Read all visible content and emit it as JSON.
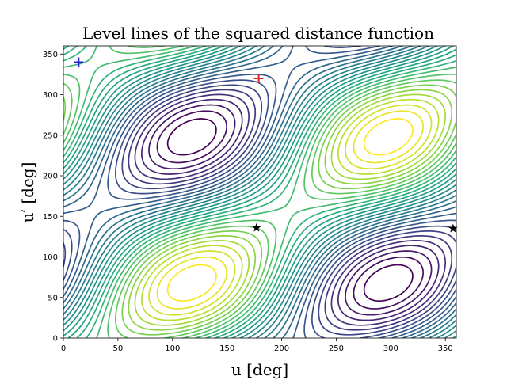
{
  "chart_data": {
    "type": "contour",
    "title": "Level lines of the squared distance function",
    "xlabel": "u [deg]",
    "ylabel": "u′ [deg]",
    "xlim": [
      0,
      360
    ],
    "ylim": [
      0,
      360
    ],
    "xticks": [
      0,
      50,
      100,
      150,
      200,
      250,
      300,
      350
    ],
    "yticks": [
      0,
      50,
      100,
      150,
      200,
      250,
      300,
      350
    ],
    "grid": false,
    "colormap": "viridis",
    "markers": [
      {
        "name": "max",
        "symbol": "+",
        "color": "#d62728",
        "x": 179,
        "y": 320
      },
      {
        "name": "min",
        "symbol": "+",
        "color": "#1f1fd6",
        "x": 14,
        "y": 340
      },
      {
        "name": "saddle-1",
        "symbol": "star",
        "color": "#000000",
        "x": 177,
        "y": 136
      },
      {
        "name": "saddle-2",
        "symbol": "star",
        "color": "#000000",
        "x": 357,
        "y": 135
      }
    ]
  }
}
